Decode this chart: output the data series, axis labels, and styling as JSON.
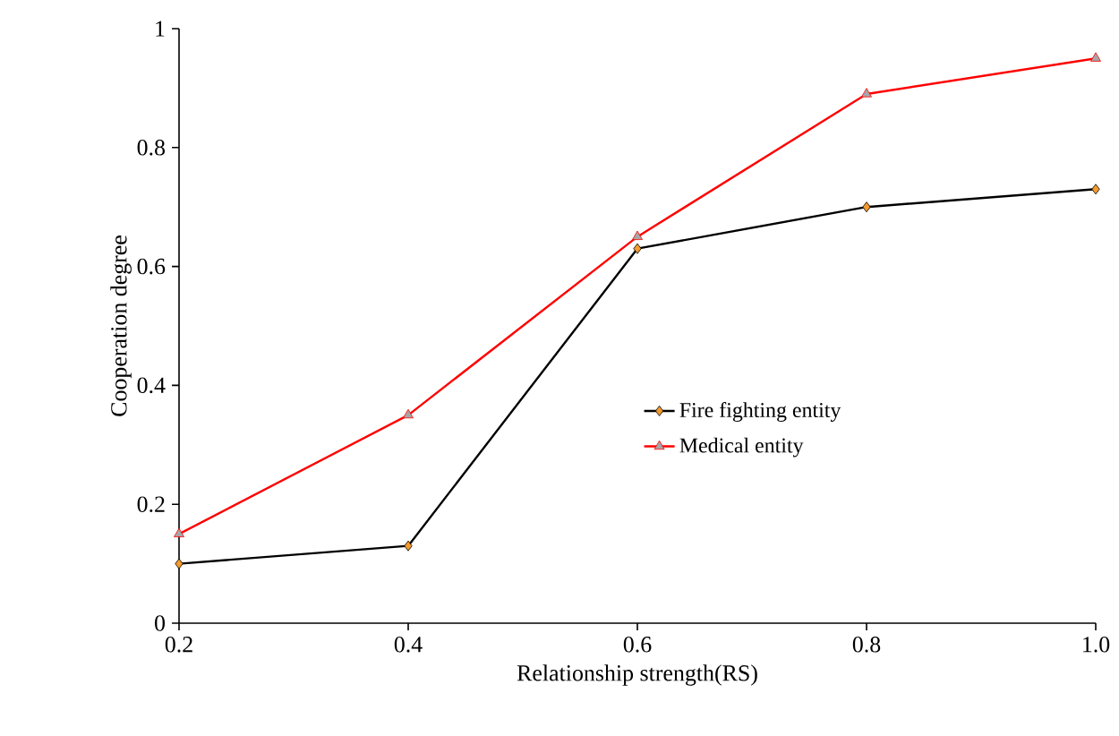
{
  "chart_data": {
    "type": "line",
    "xlabel": "Relationship strength(RS)",
    "ylabel": "Cooperation degree",
    "x": [
      0.2,
      0.4,
      0.6,
      0.8,
      1.0
    ],
    "series": [
      {
        "name": "Fire fighting entity",
        "color": "#000000",
        "marker": "diamond",
        "values": [
          0.1,
          0.13,
          0.63,
          0.7,
          0.73
        ]
      },
      {
        "name": "Medical entity",
        "color": "#ff0000",
        "marker": "triangle",
        "values": [
          0.15,
          0.35,
          0.65,
          0.89,
          0.95
        ]
      }
    ],
    "xlim": [
      0.2,
      1.0
    ],
    "ylim": [
      0,
      1
    ],
    "xticks": [
      0.2,
      0.4,
      0.6,
      0.8,
      {
        "value": 1.0,
        "label": "1.0"
      }
    ],
    "yticks": [
      0,
      0.2,
      0.4,
      0.6,
      0.8,
      1
    ],
    "grid": false,
    "legend": "right",
    "line_style": "solid"
  }
}
